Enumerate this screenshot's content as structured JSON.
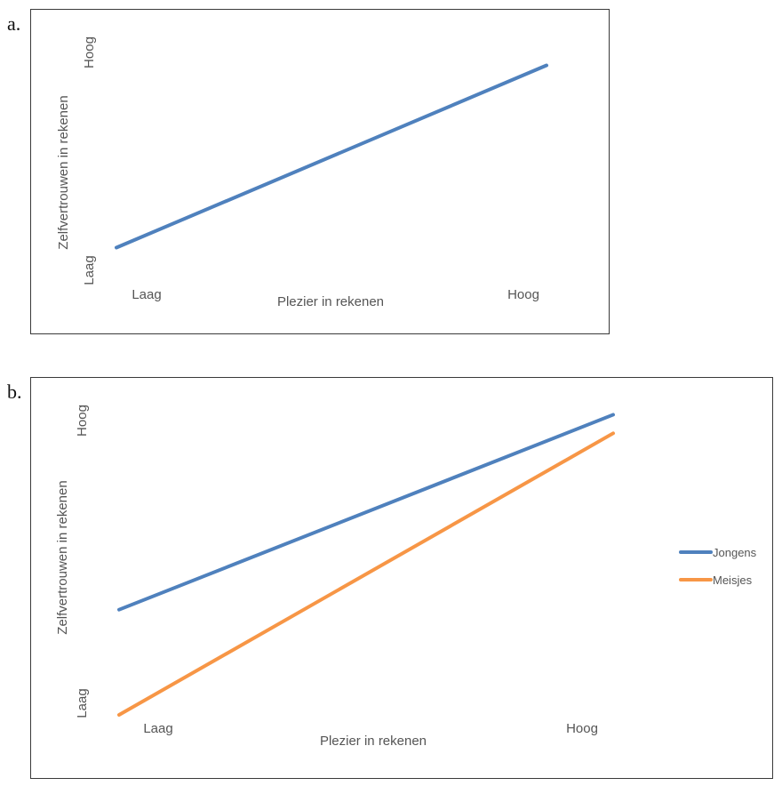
{
  "panels": [
    {
      "letter": "a.",
      "chart_data": {
        "type": "line",
        "title": "",
        "xlabel": "Plezier in rekenen",
        "ylabel": "Zelfvertrouwen in rekenen",
        "x_ticks": [
          "Laag",
          "Hoog"
        ],
        "y_ticks": [
          "Laag",
          "Hoog"
        ],
        "x": [
          0,
          1
        ],
        "xlim": [
          0,
          1
        ],
        "ylim": [
          0,
          1
        ],
        "grid": false,
        "legend": "none",
        "series": [
          {
            "name": "",
            "color": "#4f81bd",
            "values": [
              0.08,
              0.92
            ]
          }
        ]
      }
    },
    {
      "letter": "b.",
      "chart_data": {
        "type": "line",
        "title": "",
        "xlabel": "Plezier in rekenen",
        "ylabel": "Zelfvertrouwen in rekenen",
        "x_ticks": [
          "Laag",
          "Hoog"
        ],
        "y_ticks": [
          "Laag",
          "Hoog"
        ],
        "x": [
          0,
          1
        ],
        "xlim": [
          0,
          1
        ],
        "ylim": [
          0,
          1
        ],
        "grid": false,
        "legend": "right",
        "series": [
          {
            "name": "Jongens",
            "color": "#4f81bd",
            "values": [
              0.34,
              0.97
            ]
          },
          {
            "name": "Meisjes",
            "color": "#f79646",
            "values": [
              0.0,
              0.91
            ]
          }
        ]
      }
    }
  ]
}
